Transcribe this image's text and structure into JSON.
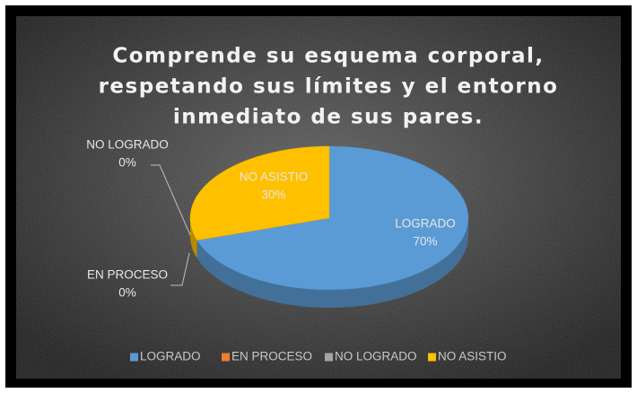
{
  "chart_data": {
    "type": "pie",
    "title": [
      "Comprende su esquema corporal,",
      "respetando sus límites y el entorno",
      "inmediato de sus pares."
    ],
    "categories": [
      "LOGRADO",
      "EN PROCESO",
      "NO LOGRADO",
      "NO ASISTIO"
    ],
    "values": [
      70,
      0,
      0,
      30
    ],
    "value_labels": [
      "70%",
      "0%",
      "0%",
      "30%"
    ],
    "colors": [
      "#5b9bd5",
      "#ed7d31",
      "#a5a5a5",
      "#ffc000"
    ],
    "legend": "bottom"
  }
}
